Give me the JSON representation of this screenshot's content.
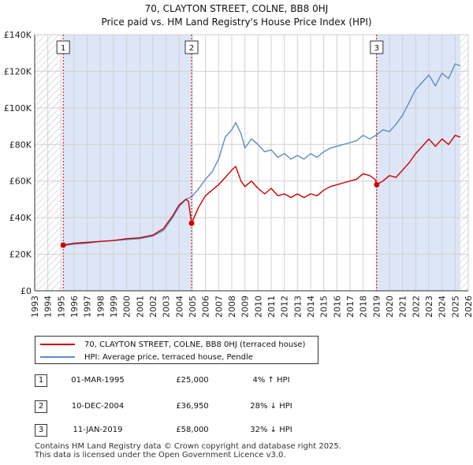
{
  "header": {
    "title_line1": "70, CLAYTON STREET, COLNE, BB8 0HJ",
    "title_line2": "Price paid vs. HM Land Registry's House Price Index (HPI)"
  },
  "legend": {
    "property_label": "70, CLAYTON STREET, COLNE, BB8 0HJ (terraced house)",
    "hpi_label": "HPI: Average price, terraced house, Pendle"
  },
  "sales": [
    {
      "num": "1",
      "date": "01-MAR-1995",
      "price": "£25,000",
      "hpi": "4% ↑ HPI"
    },
    {
      "num": "2",
      "date": "10-DEC-2004",
      "price": "£36,950",
      "hpi": "28% ↓ HPI"
    },
    {
      "num": "3",
      "date": "11-JAN-2019",
      "price": "£58,000",
      "hpi": "32% ↓ HPI"
    }
  ],
  "footer": {
    "line1": "Contains HM Land Registry data © Crown copyright and database right 2025.",
    "line2": "This data is licensed under the Open Government Licence v3.0."
  },
  "colors": {
    "property": "#cc0000",
    "hpi": "#5b8cc8",
    "shade": "#dde6f7",
    "grid": "#d0d0d0",
    "vline": "#cc0000"
  },
  "chart_data": {
    "type": "line",
    "title": "70, CLAYTON STREET, COLNE, BB8 0HJ — Price paid vs. HM Land Registry's House Price Index (HPI)",
    "xlabel": "",
    "ylabel": "",
    "xlim": [
      1993,
      2026
    ],
    "ylim": [
      0,
      140000
    ],
    "y_ticks": [
      0,
      20000,
      40000,
      60000,
      80000,
      100000,
      120000,
      140000
    ],
    "y_tick_labels": [
      "£0",
      "£20K",
      "£40K",
      "£60K",
      "£80K",
      "£100K",
      "£120K",
      "£140K"
    ],
    "x_ticks": [
      1993,
      1994,
      1995,
      1996,
      1997,
      1998,
      1999,
      2000,
      2001,
      2002,
      2003,
      2004,
      2005,
      2006,
      2007,
      2008,
      2009,
      2010,
      2011,
      2012,
      2013,
      2014,
      2015,
      2016,
      2017,
      2018,
      2019,
      2020,
      2021,
      2022,
      2023,
      2024,
      2025,
      2026
    ],
    "hatch_before": 1995.0,
    "hatch_after": 2025.4,
    "shaded_between_sales": [
      [
        1995.17,
        2004.94
      ],
      [
        2019.03,
        2025.4
      ]
    ],
    "sale_points": [
      {
        "label": "1",
        "x": 1995.17,
        "y": 25000
      },
      {
        "label": "2",
        "x": 2004.94,
        "y": 36950
      },
      {
        "label": "3",
        "x": 2019.03,
        "y": 58000
      }
    ],
    "series": [
      {
        "name": "HPI: Average price, terraced house, Pendle",
        "x": [
          1995.0,
          1996.0,
          1997.0,
          1998.0,
          1999.0,
          2000.0,
          2001.0,
          2002.0,
          2002.8,
          2003.5,
          2004.0,
          2004.5,
          2004.94,
          2005.5,
          2006.0,
          2006.5,
          2007.0,
          2007.5,
          2008.0,
          2008.3,
          2008.7,
          2009.0,
          2009.5,
          2010.0,
          2010.5,
          2011.0,
          2011.5,
          2012.0,
          2012.5,
          2013.0,
          2013.5,
          2014.0,
          2014.5,
          2015.0,
          2015.5,
          2016.0,
          2016.5,
          2017.0,
          2017.5,
          2018.0,
          2018.5,
          2019.03,
          2019.5,
          2020.0,
          2020.5,
          2021.0,
          2021.5,
          2022.0,
          2022.5,
          2023.0,
          2023.5,
          2024.0,
          2024.5,
          2025.0,
          2025.4
        ],
        "y": [
          24500,
          25500,
          26000,
          27000,
          27500,
          28000,
          28500,
          30000,
          33000,
          40000,
          46000,
          50000,
          51300,
          56000,
          61000,
          65000,
          72000,
          84000,
          88000,
          92000,
          86000,
          78000,
          83000,
          80000,
          76000,
          77000,
          73000,
          75000,
          72000,
          74000,
          72000,
          75000,
          73000,
          76000,
          78000,
          79000,
          80000,
          81000,
          82000,
          85000,
          83000,
          85300,
          88000,
          87000,
          91000,
          96000,
          103000,
          110000,
          114000,
          118000,
          112000,
          119000,
          116000,
          124000,
          123000
        ]
      },
      {
        "name": "70, CLAYTON STREET, COLNE, BB8 0HJ (terraced house)",
        "x": [
          1995.0,
          1995.17,
          1996.0,
          1997.0,
          1998.0,
          1999.0,
          2000.0,
          2001.0,
          2002.0,
          2002.8,
          2003.5,
          2004.0,
          2004.5,
          2004.7,
          2004.94,
          2005.5,
          2006.0,
          2006.5,
          2007.0,
          2007.5,
          2008.0,
          2008.3,
          2008.7,
          2009.0,
          2009.5,
          2010.0,
          2010.5,
          2011.0,
          2011.5,
          2012.0,
          2012.5,
          2013.0,
          2013.5,
          2014.0,
          2014.5,
          2015.0,
          2015.5,
          2016.0,
          2016.5,
          2017.0,
          2017.5,
          2018.0,
          2018.5,
          2018.9,
          2019.03,
          2019.5,
          2020.0,
          2020.5,
          2021.0,
          2021.5,
          2022.0,
          2022.5,
          2023.0,
          2023.5,
          2024.0,
          2024.5,
          2025.0,
          2025.4
        ],
        "y": [
          25000,
          25000,
          26000,
          26500,
          27000,
          27500,
          28500,
          29000,
          30500,
          34000,
          41000,
          47000,
          50000,
          49000,
          36950,
          46000,
          52000,
          55000,
          58000,
          62000,
          66000,
          68000,
          60000,
          57000,
          60000,
          56000,
          53000,
          56000,
          52000,
          53000,
          51000,
          53000,
          51000,
          53000,
          52000,
          55000,
          57000,
          58000,
          59000,
          60000,
          61000,
          64000,
          63000,
          61000,
          58000,
          60000,
          63000,
          62000,
          66000,
          70000,
          75000,
          79000,
          83000,
          79000,
          83000,
          80000,
          85000,
          84000
        ]
      }
    ]
  }
}
